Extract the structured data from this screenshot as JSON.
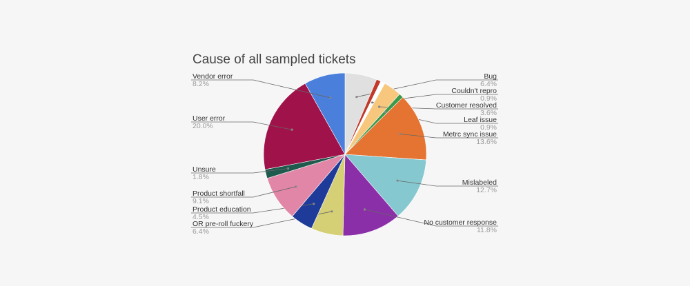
{
  "chart_data": {
    "type": "pie",
    "title": "Cause of all sampled tickets",
    "slices": [
      {
        "label": "Bug",
        "value": 6.4,
        "display": "6.4%",
        "color": "#e0e0e0"
      },
      {
        "label": "",
        "value": 0.9,
        "display": "",
        "color": "#c0392b"
      },
      {
        "label": "Couldn't repro",
        "value": 0.9,
        "display": "0.9%",
        "color": "#ffffff"
      },
      {
        "label": "Customer resolved",
        "value": 3.6,
        "display": "3.6%",
        "color": "#f6c77c"
      },
      {
        "label": "Leaf issue",
        "value": 0.9,
        "display": "0.9%",
        "color": "#3a9a4a"
      },
      {
        "label": "Metrc sync issue",
        "value": 13.6,
        "display": "13.6%",
        "color": "#e57432"
      },
      {
        "label": "Mislabeled",
        "value": 12.7,
        "display": "12.7%",
        "color": "#86c8d0"
      },
      {
        "label": "No customer response",
        "value": 11.8,
        "display": "11.8%",
        "color": "#8b2fa8"
      },
      {
        "label": "OR pre-roll fuckery",
        "value": 6.4,
        "display": "6.4%",
        "color": "#d5d076"
      },
      {
        "label": "Product education",
        "value": 4.5,
        "display": "4.5%",
        "color": "#1e3b9a"
      },
      {
        "label": "Product shortfall",
        "value": 9.1,
        "display": "9.1%",
        "color": "#e286a8"
      },
      {
        "label": "Unsure",
        "value": 1.8,
        "display": "1.8%",
        "color": "#1f5a4e"
      },
      {
        "label": "User error",
        "value": 20.0,
        "display": "20.0%",
        "color": "#a0134a"
      },
      {
        "label": "Vendor error",
        "value": 8.2,
        "display": "8.2%",
        "color": "#4a7fdc"
      }
    ],
    "legend": "none (callout labels beside slices)"
  }
}
